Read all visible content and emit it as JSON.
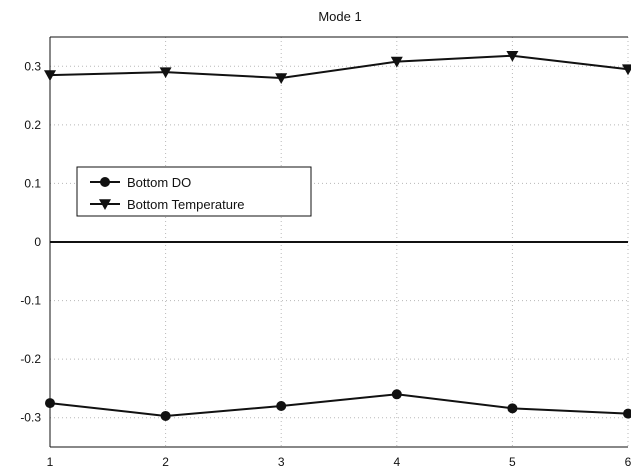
{
  "chart_data": {
    "type": "line",
    "title": "Mode 1",
    "xlabel": "",
    "ylabel": "",
    "x": [
      1,
      2,
      3,
      4,
      5,
      6
    ],
    "xlim": [
      1,
      6
    ],
    "ylim": [
      -0.35,
      0.35
    ],
    "xticks": [
      "1",
      "2",
      "3",
      "4",
      "5",
      "6"
    ],
    "yticks": [
      "0.3",
      "0.2",
      "0.1",
      "0",
      "-0.1",
      "-0.2",
      "-0.3"
    ],
    "grid": true,
    "legend_position": "center-left",
    "zero_line": true,
    "series": [
      {
        "name": "Bottom DO",
        "marker": "circle",
        "color": "#111111",
        "values": [
          -0.275,
          -0.297,
          -0.28,
          -0.26,
          -0.284,
          -0.293
        ]
      },
      {
        "name": "Bottom Temperature",
        "marker": "triangle-down",
        "color": "#111111",
        "values": [
          0.285,
          0.29,
          0.28,
          0.308,
          0.318,
          0.295
        ]
      }
    ]
  }
}
